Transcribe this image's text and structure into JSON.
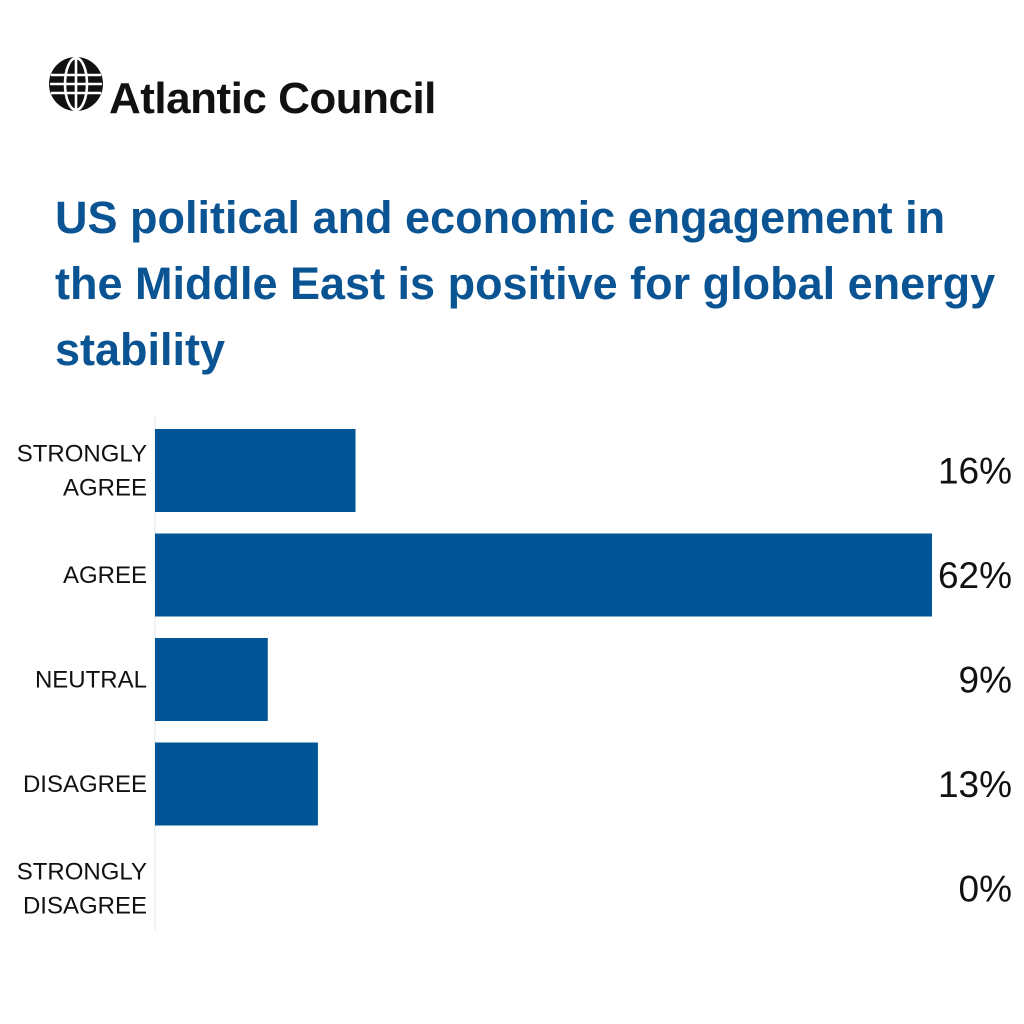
{
  "brand": {
    "name": "Atlantic Council",
    "logo_icon": "globe-icon"
  },
  "colors": {
    "bar": "#005596",
    "title": "#0a5494",
    "text": "#111111"
  },
  "chart_data": {
    "type": "bar",
    "orientation": "horizontal",
    "title": "US political and economic engagement in the Middle East is positive for global energy stability",
    "categories": [
      [
        "STRONGLY",
        "AGREE"
      ],
      [
        "AGREE"
      ],
      [
        "NEUTRAL"
      ],
      [
        "DISAGREE"
      ],
      [
        "STRONGLY",
        "DISAGREE"
      ]
    ],
    "values": [
      16,
      62,
      9,
      13,
      0
    ],
    "value_labels": [
      "16%",
      "62%",
      "9%",
      "13%",
      "0%"
    ],
    "xlim": [
      0,
      62
    ],
    "grid": false,
    "legend": "none"
  }
}
